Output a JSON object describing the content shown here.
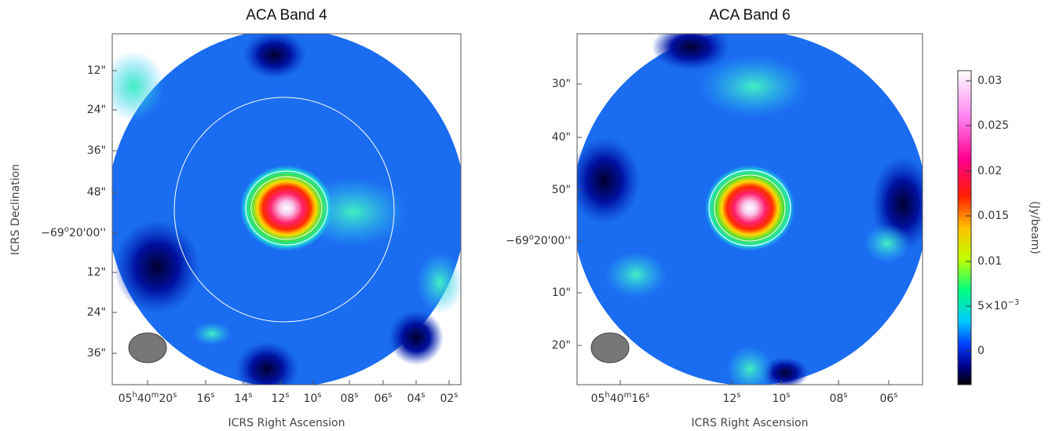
{
  "panels": [
    {
      "title": "ACA  Band 4",
      "x_axis_label": "ICRS Right Ascension",
      "y_axis_label": "ICRS Declination",
      "y_ticks": [
        [
          "12\""
        ],
        [
          "24\""
        ],
        [
          "36\""
        ],
        [
          "48\""
        ],
        [
          "−69",
          "o",
          "20'00''"
        ],
        [
          "12\""
        ],
        [
          "24\""
        ],
        [
          "36\""
        ]
      ],
      "x_ticks": [
        [
          "05",
          "h",
          "40",
          "m",
          "20",
          "s"
        ],
        [
          "16",
          "s"
        ],
        [
          "14",
          "s"
        ],
        [
          "12",
          "s"
        ],
        [
          "10",
          "s"
        ],
        [
          "08",
          "s"
        ],
        [
          "06",
          "s"
        ],
        [
          "04",
          "s"
        ],
        [
          "02",
          "s"
        ]
      ]
    },
    {
      "title": "ACA  Band 6",
      "x_axis_label": "ICRS Right Ascension",
      "y_ticks": [
        [
          "30\""
        ],
        [
          "40\""
        ],
        [
          "50\""
        ],
        [
          "−69",
          "o",
          "20'00''"
        ],
        [
          "10\""
        ],
        [
          "20\""
        ]
      ],
      "x_ticks": [
        [
          "05",
          "h",
          "40",
          "m",
          "16",
          "s"
        ],
        [
          "12",
          "s"
        ],
        [
          "10",
          "s"
        ],
        [
          "08",
          "s"
        ],
        [
          "06",
          "s"
        ]
      ]
    }
  ],
  "colorbar": {
    "label": "(Jy/beam)",
    "ticks": [
      [
        "0.03"
      ],
      [
        "0.025"
      ],
      [
        "0.02"
      ],
      [
        "0.015"
      ],
      [
        "0.01"
      ],
      [
        "5×10",
        "−3"
      ],
      [
        "0"
      ]
    ]
  }
}
